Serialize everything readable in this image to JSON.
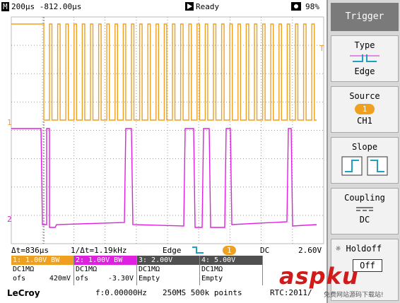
{
  "topbar": {
    "mode_icon": "M",
    "timebase": "200µs -812.00µs",
    "run_icon": "play-icon",
    "status": "Ready",
    "battery_icon": "power-icon",
    "battery": "98%"
  },
  "screen": {
    "trigger_marker": "T",
    "ch1_marker": "1",
    "ch2_marker": "2",
    "ch1_color": "#f0a020",
    "ch2_color": "#e020e0"
  },
  "measure": {
    "dt": "Δt=836µs",
    "inv_dt": "1/Δt=1.19kHz",
    "trig_type": "Edge",
    "trig_ch": "1",
    "coupling": "DC",
    "level": "2.60V"
  },
  "channels": [
    {
      "label": "1: 1.00V  BW",
      "coupling": "DC1MΩ",
      "offset_label": "ofs",
      "offset": "420mV",
      "color": "#f0a020"
    },
    {
      "label": "2: 1.00V  BW",
      "coupling": "DC1MΩ",
      "offset_label": "ofs",
      "offset": "-3.30V",
      "color": "#e020e0"
    },
    {
      "label": "3: 2.00V",
      "coupling": "DC1MΩ",
      "offset_label": "Empty",
      "offset": "",
      "color": "#606060"
    },
    {
      "label": "4: 5.00V",
      "coupling": "DC1MΩ",
      "offset_label": "Empty",
      "offset": "",
      "color": "#606060"
    }
  ],
  "bottom": {
    "brand": "LeCroy",
    "freq": "f:0.00000Hz",
    "sample": "250MS 500k points",
    "rtc": "RTC:2011/"
  },
  "panel": {
    "title": "Trigger",
    "type_label": "Type",
    "type_value": "Edge",
    "source_label": "Source",
    "source_badge": "1",
    "source_value": "CH1",
    "slope_label": "Slope",
    "coupling_label": "Coupling",
    "coupling_value": "DC",
    "holdoff_label": "Holdoff",
    "holdoff_value": "Off"
  },
  "watermark": {
    "text": "asp",
    "text2": "ku",
    "sub": "免费网站源码下载站!"
  }
}
